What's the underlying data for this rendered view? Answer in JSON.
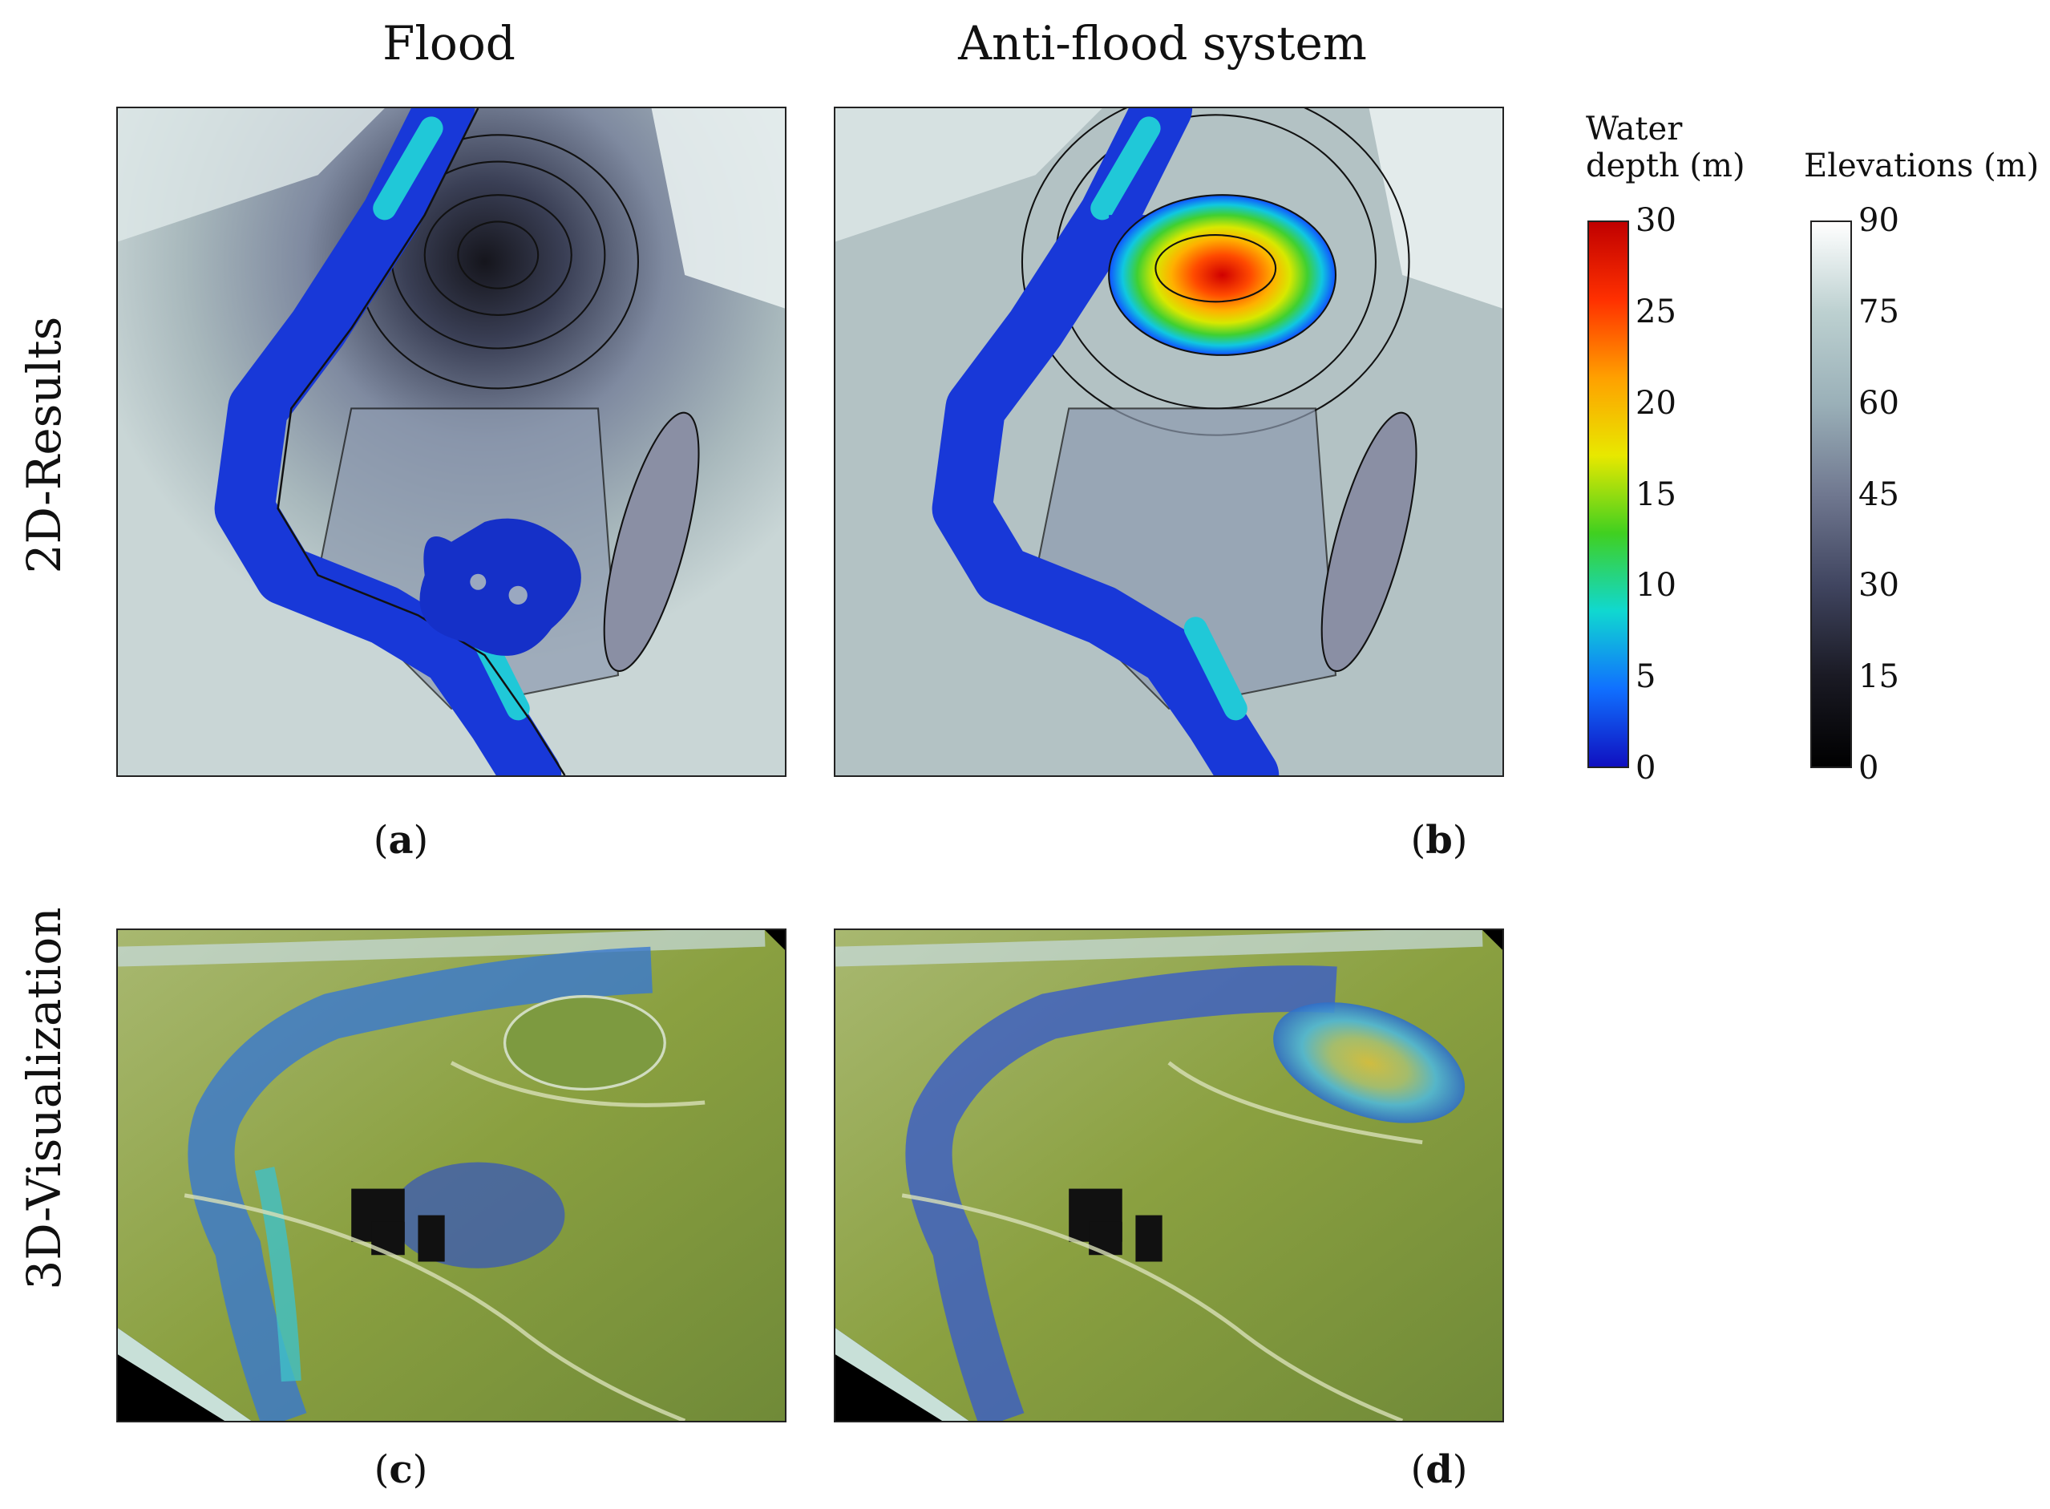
{
  "columns": {
    "left_title": "Flood",
    "right_title": "Anti-flood system"
  },
  "rows": {
    "top_label": "2D-Results",
    "bottom_label": "3D-Visualization"
  },
  "subfigures": {
    "a": "a",
    "b": "b",
    "c": "c",
    "d": "d"
  },
  "colorbars": {
    "water_depth": {
      "title_line1": "Water",
      "title_line2": "depth (m)",
      "ticks": [
        "30",
        "25",
        "20",
        "15",
        "10",
        "5",
        "0"
      ],
      "colors": [
        "#c00000",
        "#ff3000",
        "#ffa000",
        "#e8e800",
        "#40d020",
        "#10d8d0",
        "#1070ff",
        "#1010c0"
      ]
    },
    "elevations": {
      "title": "Elevations (m)",
      "ticks": [
        "90",
        "75",
        "60",
        "45",
        "30",
        "15",
        "0"
      ],
      "colors": [
        "#ffffff",
        "#bcd0d0",
        "#9ab0b8",
        "#707890",
        "#404560",
        "#1a1a24",
        "#000000"
      ]
    }
  }
}
